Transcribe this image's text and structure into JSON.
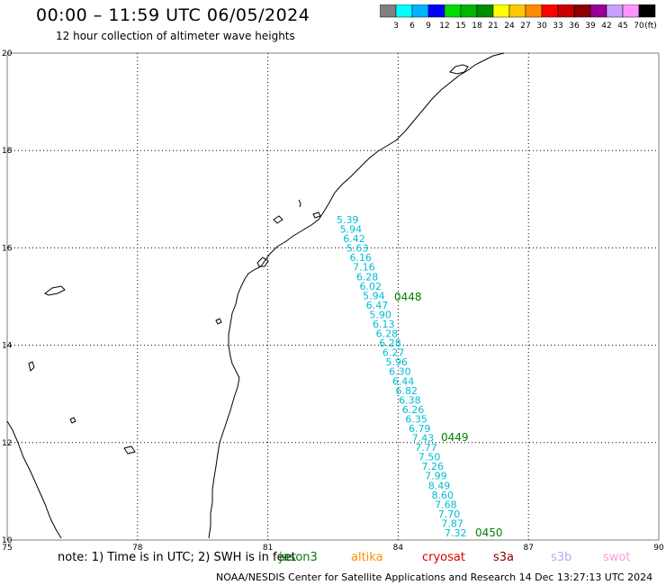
{
  "header": {
    "title": "00:00 – 11:59 UTC 06/05/2024",
    "subtitle": "12 hour collection of altimeter wave heights"
  },
  "colorbar": {
    "unit": "(ft)",
    "colors": [
      "#808080",
      "#00ffff",
      "#00b4ff",
      "#0000ff",
      "#00dc00",
      "#00b400",
      "#008c00",
      "#ffff00",
      "#ffc800",
      "#ff8c00",
      "#ff0000",
      "#c80000",
      "#8c0000",
      "#960096",
      "#c8a0ff",
      "#ff96ff",
      "#000000"
    ],
    "labels": [
      "3",
      "6",
      "9",
      "12",
      "15",
      "18",
      "21",
      "24",
      "27",
      "30",
      "33",
      "36",
      "39",
      "42",
      "45",
      "70"
    ]
  },
  "axes": {
    "x_ticks": [
      "75",
      "78",
      "81",
      "84",
      "87",
      "90"
    ],
    "y_ticks": [
      "20",
      "18",
      "16",
      "14",
      "12",
      "10"
    ]
  },
  "track": {
    "swh_values": [
      "5.39",
      "5.94",
      "6.42",
      "5.63",
      "6.16",
      "7.16",
      "6.28",
      "6.02",
      "5.94",
      "6.47",
      "5.90",
      "6.13",
      "6.28",
      "6.28",
      "6.27",
      "5.96",
      "6.30",
      "6.44",
      "6.82",
      "6.38",
      "6.26",
      "6.35",
      "6.79",
      "7.43",
      "7.77",
      "7.50",
      "7.26",
      "7.99",
      "8.49",
      "8.60",
      "7.68",
      "7.70",
      "7.87",
      "7.32"
    ],
    "time_labels": [
      "0448",
      "0449",
      "0450"
    ],
    "swh_color": "#00bcd4",
    "time_color": "#008000"
  },
  "footer": {
    "note": "note:  1) Time is in UTC;  2) SWH is in feet",
    "credit": "NOAA/NESDIS Center for Satellite Applications and Research    14 Dec 13:27:13 UTC 2024",
    "legend": [
      {
        "name": "jason3",
        "color": "#008000"
      },
      {
        "name": "altika",
        "color": "#ff8c00"
      },
      {
        "name": "cryosat",
        "color": "#dd0000"
      },
      {
        "name": "s3a",
        "color": "#8b0000"
      },
      {
        "name": "s3b",
        "color": "#b8a8f0"
      },
      {
        "name": "swot",
        "color": "#ff99dd"
      }
    ]
  }
}
